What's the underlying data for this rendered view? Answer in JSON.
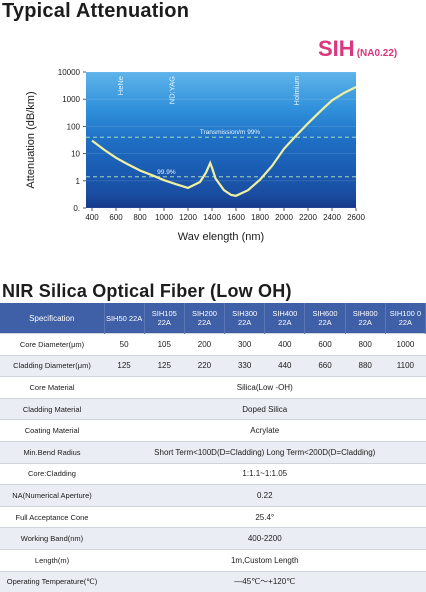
{
  "chart_title": "Typical Attenuation",
  "table_title": "NIR Silica Optical Fiber (Low OH)",
  "chart_data": {
    "type": "line",
    "brand": "SIH",
    "brand_suffix": "(NA0.22)",
    "xlabel": "Wav elength (nm)",
    "ylabel": "Attenuation (dB/km)",
    "xlim": [
      350,
      2600
    ],
    "ylog": true,
    "ylim": [
      0.1,
      10000
    ],
    "xticks": [
      400,
      600,
      800,
      1000,
      1200,
      1400,
      1600,
      1800,
      2000,
      2200,
      2400,
      2600
    ],
    "yticks": [
      {
        "value": 10000,
        "label": "10000"
      },
      {
        "value": 1000,
        "label": "1000"
      },
      {
        "value": 100,
        "label": "100"
      },
      {
        "value": 10,
        "label": "10"
      },
      {
        "value": 1,
        "label": "1"
      },
      {
        "value": 0.1,
        "label": "0."
      }
    ],
    "laser_lines": [
      {
        "label": "HeNe",
        "x": 633
      },
      {
        "label": "ND:YAG",
        "x": 1064
      },
      {
        "label": "Holmium",
        "x": 2100
      }
    ],
    "reference_lines": [
      {
        "label": "Transmission/m 99%",
        "y": 40
      },
      {
        "label": "99.9%",
        "y": 1.4
      }
    ],
    "band_colors": {
      "high": "#1a5fb4",
      "mid": "#1d73c8",
      "low": "#2b8fd8",
      "bottom": "#1c3d8c"
    },
    "series": [
      {
        "color": "#f0f0a0",
        "points": [
          [
            400,
            30
          ],
          [
            500,
            14
          ],
          [
            600,
            7
          ],
          [
            700,
            4
          ],
          [
            800,
            2.4
          ],
          [
            900,
            1.6
          ],
          [
            1000,
            1.05
          ],
          [
            1100,
            0.75
          ],
          [
            1200,
            0.55
          ],
          [
            1300,
            0.9
          ],
          [
            1350,
            2
          ],
          [
            1385,
            4.5
          ],
          [
            1400,
            3
          ],
          [
            1430,
            1.2
          ],
          [
            1500,
            0.45
          ],
          [
            1560,
            0.3
          ],
          [
            1600,
            0.28
          ],
          [
            1700,
            0.45
          ],
          [
            1800,
            1.1
          ],
          [
            1900,
            3.5
          ],
          [
            2000,
            15
          ],
          [
            2100,
            45
          ],
          [
            2200,
            130
          ],
          [
            2300,
            350
          ],
          [
            2400,
            900
          ],
          [
            2500,
            1700
          ],
          [
            2600,
            2800
          ]
        ]
      }
    ]
  },
  "table": {
    "header": [
      "Specification",
      "SIH50 22A",
      "SIH105 22A",
      "SIH200 22A",
      "SIH300 22A",
      "SIH400 22A",
      "SIH600 22A",
      "SIH800 22A",
      "SIH100 0 22A"
    ],
    "rows": [
      {
        "label": "Core Diameter(μm)",
        "values": [
          "50",
          "105",
          "200",
          "300",
          "400",
          "600",
          "800",
          "1000"
        ]
      },
      {
        "label": "Cladding Diameter(μm)",
        "values": [
          "125",
          "125",
          "220",
          "330",
          "440",
          "660",
          "880",
          "1100"
        ]
      },
      {
        "label": "Core Material",
        "span": "Silica(Low -OH)"
      },
      {
        "label": "Cladding  Material",
        "span": "Doped Silica"
      },
      {
        "label": "Coating  Material",
        "span": "Acrylate"
      },
      {
        "label": "Min.Bend Radius",
        "span": "Short Term<100D(D=Cladding)  Long Term<200D(D=Cladding)"
      },
      {
        "label": "Core:Cladding",
        "span": "1:1.1~1:1.05"
      },
      {
        "label": "NA(Numerical Aperture)",
        "span": "0.22"
      },
      {
        "label": "Full Acceptance Cone",
        "span": "25.4°"
      },
      {
        "label": "Working Band(nm)",
        "span": "400-2200"
      },
      {
        "label": "Length(m)",
        "span": "1m,Custom Length"
      },
      {
        "label": "Operating Temperature(℃)",
        "span": "—45℃～+120℃"
      }
    ]
  }
}
